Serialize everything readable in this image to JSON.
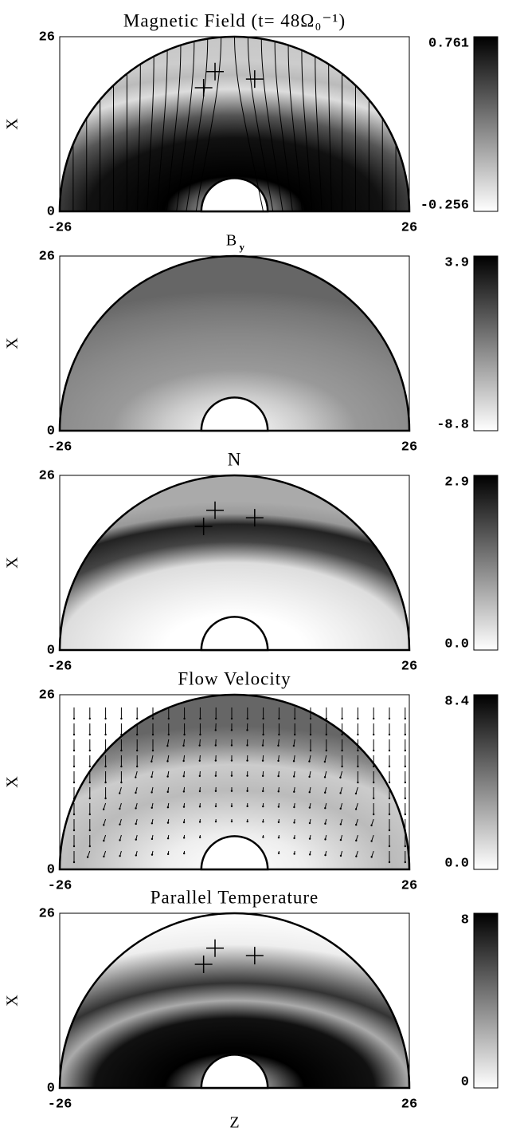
{
  "chart_data": [
    {
      "type": "heatmap",
      "title": "Magnetic Field (t= 48Ω₀⁻¹)",
      "y_label": "X",
      "xlim": [
        -26,
        26
      ],
      "ylim": [
        0,
        26
      ],
      "xticks": [
        -26,
        26
      ],
      "yticks": [
        0,
        26
      ],
      "cmap": "gray_r",
      "colorbar": {
        "lim": [
          -0.256,
          0.761
        ],
        "ticks": [
          -0.256,
          0.761
        ]
      },
      "markers": {
        "x": [
          -4.6,
          -2.9,
          3.0
        ],
        "y": [
          18.4,
          20.8,
          19.7
        ]
      }
    },
    {
      "type": "heatmap",
      "title": "B",
      "title_sub": "y",
      "y_label": "X",
      "xlim": [
        -26,
        26
      ],
      "ylim": [
        0,
        26
      ],
      "xticks": [
        -26,
        26
      ],
      "yticks": [
        0,
        26
      ],
      "cmap": "gray_r",
      "colorbar": {
        "lim": [
          -8.8,
          3.9
        ],
        "ticks": [
          -8.8,
          3.9
        ]
      }
    },
    {
      "type": "heatmap",
      "title": "N",
      "y_label": "X",
      "xlim": [
        -26,
        26
      ],
      "ylim": [
        0,
        26
      ],
      "xticks": [
        -26,
        26
      ],
      "yticks": [
        0,
        26
      ],
      "cmap": "gray_r",
      "colorbar": {
        "lim": [
          0,
          2.9
        ],
        "ticks": [
          {
            "value": 0,
            "label": "0.0"
          },
          2.9
        ]
      },
      "markers": {
        "x": [
          -4.6,
          -2.9,
          3.0
        ],
        "y": [
          18.4,
          20.8,
          19.7
        ]
      }
    },
    {
      "type": "heatmap",
      "title": "Flow Velocity",
      "y_label": "X",
      "xlim": [
        -26,
        26
      ],
      "ylim": [
        0,
        26
      ],
      "xticks": [
        -26,
        26
      ],
      "yticks": [
        0,
        26
      ],
      "cmap": "gray_r",
      "colorbar": {
        "lim": [
          0,
          8.4
        ],
        "ticks": [
          {
            "value": 0,
            "label": "0.0"
          },
          8.4
        ]
      }
    },
    {
      "type": "heatmap",
      "title": "Parallel Temperature",
      "y_label": "X",
      "x_label": "Z",
      "xlim": [
        -26,
        26
      ],
      "ylim": [
        0,
        26
      ],
      "xticks": [
        -26,
        26
      ],
      "yticks": [
        0,
        26
      ],
      "cmap": "gray_r",
      "colorbar": {
        "lim": [
          0,
          8
        ],
        "ticks": [
          0,
          8
        ]
      },
      "markers": {
        "x": [
          -4.6,
          -2.9,
          3.0
        ],
        "y": [
          18.4,
          20.8,
          19.7
        ]
      }
    }
  ]
}
